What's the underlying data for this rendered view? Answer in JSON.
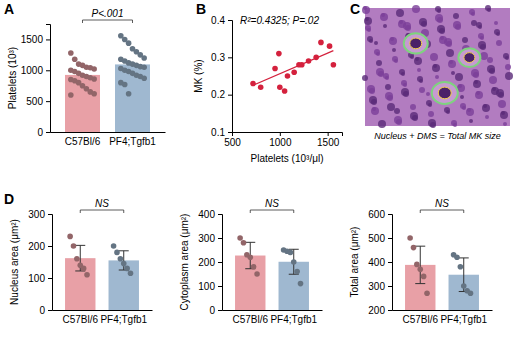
{
  "chart_data": [
    {
      "type": "bar",
      "ylabel": "Platelets (10³)",
      "categories": [
        "C57Bl/6",
        "PF4;Tgfb1"
      ],
      "values": [
        925,
        1095
      ],
      "colors": [
        "#e8a0a6",
        "#9fb8d0"
      ],
      "points": [
        [
          1280,
          1180,
          1100,
          1080,
          1050,
          1040,
          1020,
          1000,
          980,
          950,
          920,
          900,
          880,
          860,
          850,
          830,
          800,
          750,
          700,
          650,
          620,
          600
        ],
        [
          1560,
          1500,
          1440,
          1350,
          1300,
          1250,
          1200,
          1180,
          1150,
          1120,
          1100,
          1080,
          1060,
          1050,
          1030,
          1000,
          980,
          950,
          920,
          900,
          870,
          800,
          770,
          620
        ]
      ],
      "annotation": "P<.001",
      "ylim": [
        0,
        1750
      ],
      "yticks": [
        0,
        500,
        1000,
        1500
      ]
    },
    {
      "type": "scatter",
      "xlabel": "Platelets (10³/μl)",
      "ylabel": "MK (%)",
      "annotation": "R²=0.4325; P=.02",
      "x": [
        720,
        800,
        950,
        990,
        1000,
        1050,
        1080,
        1150,
        1200,
        1230,
        1300,
        1380,
        1430,
        1520,
        1560
      ],
      "values": [
        0.23,
        0.22,
        0.27,
        0.31,
        0.22,
        0.21,
        0.25,
        0.26,
        0.28,
        0.28,
        0.29,
        0.3,
        0.34,
        0.33,
        0.28
      ],
      "fit": {
        "x": [
          720,
          1560
        ],
        "values": [
          0.225,
          0.318
        ]
      },
      "color": "#d4213d",
      "xlim": [
        500,
        1650
      ],
      "xticks": [
        500,
        1000,
        1500
      ],
      "ylim": [
        0.1,
        0.4
      ],
      "yticks": [
        0.1,
        0.2,
        0.3,
        0.4
      ]
    },
    {
      "type": "bar",
      "ylabel": "Nucleus area (μm²)",
      "categories": [
        "C57Bl/6",
        "PF4;Tgfb1"
      ],
      "values": [
        162,
        155
      ],
      "errors": [
        40,
        30
      ],
      "colors": [
        "#e8a0a6",
        "#9fb8d0"
      ],
      "points": [
        [
          230,
          200,
          160,
          140,
          130,
          110
        ],
        [
          200,
          180,
          160,
          145,
          130,
          115
        ]
      ],
      "annotation": "NS",
      "ylim": [
        0,
        300
      ],
      "yticks": [
        0,
        100,
        200,
        300
      ]
    },
    {
      "type": "bar",
      "ylabel": "Cytoplasm area (μm²)",
      "categories": [
        "C57Bl/6",
        "PF4;Tgfb1"
      ],
      "values": [
        227,
        201
      ],
      "errors": [
        55,
        52
      ],
      "colors": [
        "#e8a0a6",
        "#9fb8d0"
      ],
      "points": [
        [
          300,
          280,
          230,
          220,
          180,
          150
        ],
        [
          250,
          245,
          240,
          200,
          160,
          110
        ]
      ],
      "annotation": "NS",
      "ylim": [
        0,
        400
      ],
      "yticks": [
        0,
        100,
        200,
        300,
        400
      ]
    },
    {
      "type": "bar",
      "ylabel": "Total area (μm²)",
      "categories": [
        "C57Bl/6",
        "PF4;Tgfb1"
      ],
      "values": [
        388,
        347
      ],
      "errors": [
        78,
        70
      ],
      "colors": [
        "#e8a0a6",
        "#9fb8d0"
      ],
      "points": [
        [
          500,
          460,
          390,
          370,
          340,
          270
        ],
        [
          430,
          420,
          380,
          300,
          280,
          270
        ]
      ],
      "annotation": "NS",
      "ylim": [
        200,
        600
      ],
      "yticks": [
        200,
        300,
        400,
        500,
        600
      ]
    }
  ],
  "panel_labels": [
    "A",
    "B",
    "C",
    "D"
  ],
  "image": {
    "caption": "Nucleus + DMS = Total MK size"
  }
}
